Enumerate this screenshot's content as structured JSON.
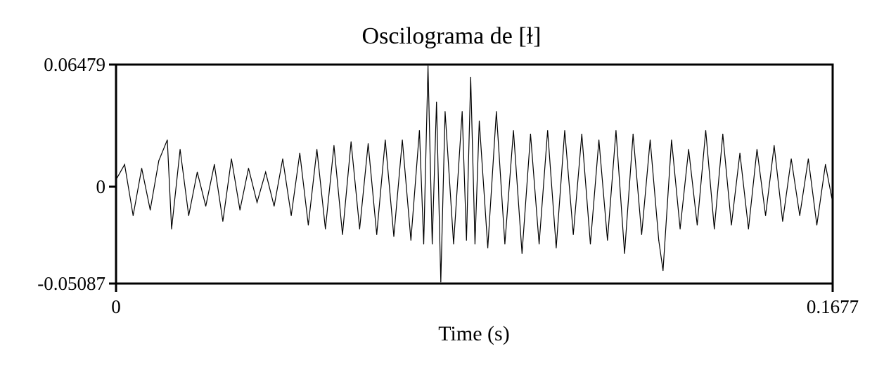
{
  "chart_data": {
    "type": "line",
    "title": "Oscilograma de [ɫ]",
    "xlabel": "Time (s)",
    "ylabel": "",
    "xlim": [
      0,
      0.1677
    ],
    "ylim": [
      -0.05087,
      0.06479
    ],
    "x_tick_labels": [
      "0",
      "0.1677"
    ],
    "y_tick_labels": [
      "0.06479",
      "0",
      "-0.05087"
    ],
    "grid": false,
    "series": [
      {
        "values": [
          [
            0.0,
            0.004
          ],
          [
            0.002,
            0.012
          ],
          [
            0.004,
            -0.015
          ],
          [
            0.006,
            0.01
          ],
          [
            0.008,
            -0.012
          ],
          [
            0.01,
            0.014
          ],
          [
            0.012,
            0.025
          ],
          [
            0.013,
            -0.022
          ],
          [
            0.015,
            0.02
          ],
          [
            0.017,
            -0.015
          ],
          [
            0.019,
            0.008
          ],
          [
            0.021,
            -0.01
          ],
          [
            0.023,
            0.012
          ],
          [
            0.025,
            -0.018
          ],
          [
            0.027,
            0.015
          ],
          [
            0.029,
            -0.012
          ],
          [
            0.031,
            0.01
          ],
          [
            0.033,
            -0.008
          ],
          [
            0.035,
            0.008
          ],
          [
            0.037,
            -0.01
          ],
          [
            0.039,
            0.015
          ],
          [
            0.041,
            -0.015
          ],
          [
            0.043,
            0.018
          ],
          [
            0.045,
            -0.02
          ],
          [
            0.047,
            0.02
          ],
          [
            0.049,
            -0.022
          ],
          [
            0.051,
            0.022
          ],
          [
            0.053,
            -0.025
          ],
          [
            0.055,
            0.024
          ],
          [
            0.057,
            -0.022
          ],
          [
            0.059,
            0.023
          ],
          [
            0.061,
            -0.025
          ],
          [
            0.063,
            0.025
          ],
          [
            0.065,
            -0.026
          ],
          [
            0.067,
            0.025
          ],
          [
            0.069,
            -0.028
          ],
          [
            0.071,
            0.03
          ],
          [
            0.072,
            -0.03
          ],
          [
            0.073,
            0.064
          ],
          [
            0.074,
            -0.03
          ],
          [
            0.075,
            0.045
          ],
          [
            0.076,
            -0.05
          ],
          [
            0.077,
            0.04
          ],
          [
            0.079,
            -0.03
          ],
          [
            0.081,
            0.04
          ],
          [
            0.082,
            -0.028
          ],
          [
            0.083,
            0.058
          ],
          [
            0.084,
            -0.03
          ],
          [
            0.085,
            0.035
          ],
          [
            0.087,
            -0.032
          ],
          [
            0.089,
            0.04
          ],
          [
            0.091,
            -0.03
          ],
          [
            0.093,
            0.03
          ],
          [
            0.095,
            -0.035
          ],
          [
            0.097,
            0.028
          ],
          [
            0.099,
            -0.03
          ],
          [
            0.101,
            0.03
          ],
          [
            0.103,
            -0.032
          ],
          [
            0.105,
            0.03
          ],
          [
            0.107,
            -0.025
          ],
          [
            0.109,
            0.028
          ],
          [
            0.111,
            -0.03
          ],
          [
            0.113,
            0.025
          ],
          [
            0.115,
            -0.028
          ],
          [
            0.117,
            0.03
          ],
          [
            0.119,
            -0.035
          ],
          [
            0.121,
            0.028
          ],
          [
            0.123,
            -0.025
          ],
          [
            0.125,
            0.025
          ],
          [
            0.127,
            -0.028
          ],
          [
            0.128,
            -0.044
          ],
          [
            0.13,
            0.025
          ],
          [
            0.132,
            -0.022
          ],
          [
            0.134,
            0.02
          ],
          [
            0.136,
            -0.02
          ],
          [
            0.138,
            0.03
          ],
          [
            0.14,
            -0.022
          ],
          [
            0.142,
            0.028
          ],
          [
            0.144,
            -0.02
          ],
          [
            0.146,
            0.018
          ],
          [
            0.148,
            -0.022
          ],
          [
            0.15,
            0.02
          ],
          [
            0.152,
            -0.015
          ],
          [
            0.154,
            0.022
          ],
          [
            0.156,
            -0.018
          ],
          [
            0.158,
            0.015
          ],
          [
            0.16,
            -0.015
          ],
          [
            0.162,
            0.015
          ],
          [
            0.164,
            -0.02
          ],
          [
            0.166,
            0.012
          ],
          [
            0.1677,
            -0.008
          ]
        ]
      }
    ]
  }
}
